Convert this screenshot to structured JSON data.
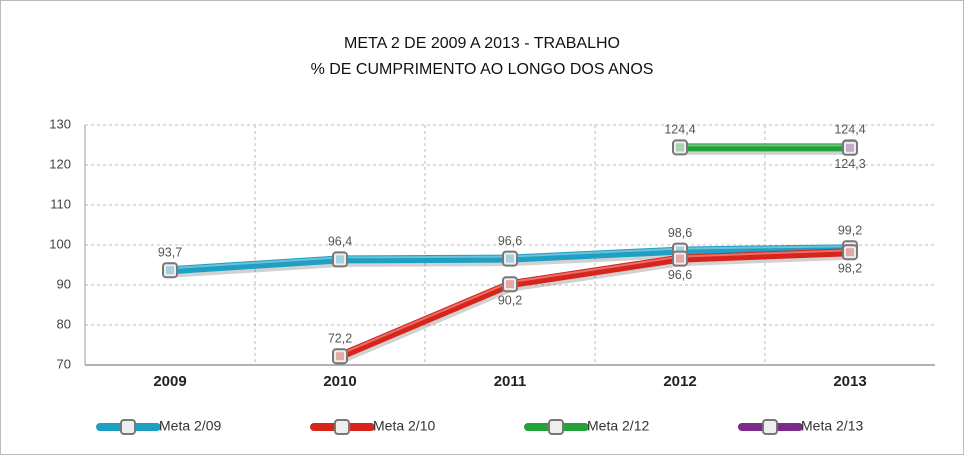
{
  "chart_data": {
    "type": "line",
    "title": [
      "META 2 DE 2009 A 2013 - TRABALHO",
      "% DE CUMPRIMENTO AO LONGO DOS ANOS"
    ],
    "categories": [
      "2009",
      "2010",
      "2011",
      "2012",
      "2013"
    ],
    "series": [
      {
        "name": "Meta 2/09",
        "color": "#1e9fc4",
        "values": [
          93.7,
          96.4,
          96.6,
          98.6,
          99.2
        ],
        "value_labels": [
          "93,7",
          "96,4",
          "96,6",
          "98,6",
          "99,2"
        ]
      },
      {
        "name": "Meta 2/10",
        "color": "#d8251c",
        "values": [
          null,
          72.2,
          90.2,
          96.6,
          98.2
        ],
        "value_labels": [
          null,
          "72,2",
          "90,2",
          "96,6",
          "98,2"
        ]
      },
      {
        "name": "Meta 2/12",
        "color": "#23a337",
        "values": [
          null,
          null,
          null,
          124.4,
          124.4
        ],
        "value_labels": [
          null,
          null,
          null,
          "124,4",
          "124,4"
        ]
      },
      {
        "name": "Meta 2/13",
        "color": "#7b2a8c",
        "values": [
          null,
          null,
          null,
          null,
          124.3
        ],
        "value_labels": [
          null,
          null,
          null,
          null,
          "124,3"
        ]
      }
    ],
    "ylim": [
      70,
      130
    ],
    "yticks": [
      70,
      80,
      90,
      100,
      110,
      120,
      130
    ],
    "grid": true,
    "legend": "bottom"
  }
}
